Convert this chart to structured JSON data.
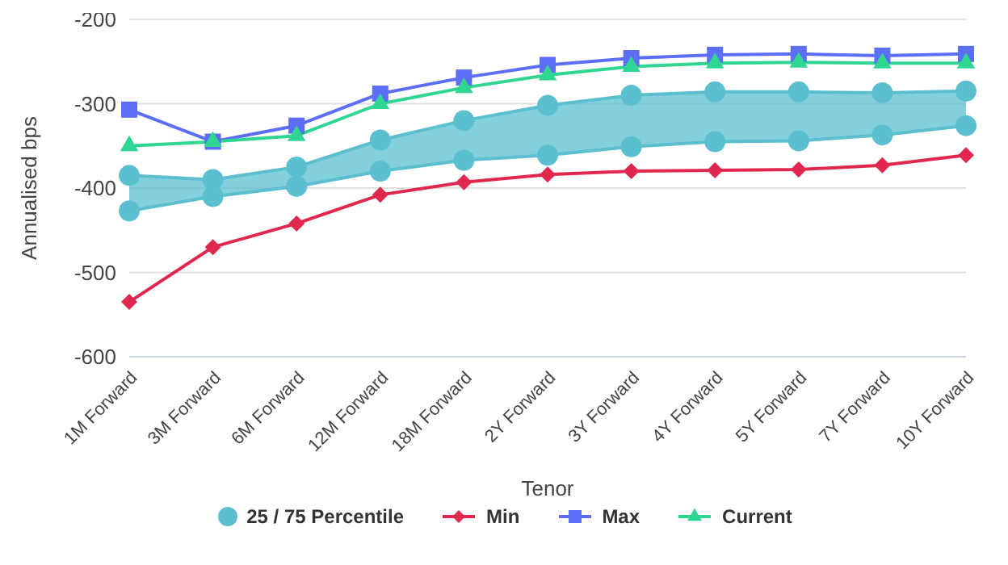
{
  "chart_data": {
    "type": "line",
    "xlabel": "Tenor",
    "ylabel": "Annualised bps",
    "categories": [
      "1M Forward",
      "3M Forward",
      "6M Forward",
      "12M Forward",
      "18M Forward",
      "2Y Forward",
      "3Y Forward",
      "4Y Forward",
      "5Y Forward",
      "7Y Forward",
      "10Y Forward"
    ],
    "ylim": [
      -600,
      -200
    ],
    "yticks": [
      -600,
      -500,
      -400,
      -300,
      -200
    ],
    "grid": "y",
    "legend": "bottom",
    "series": [
      {
        "name": "25 / 75 Percentile",
        "color": "#5bbfd0",
        "marker": "circle",
        "values": [
          -385,
          -390,
          -375,
          -343,
          -320,
          -302,
          -290,
          -286,
          -286,
          -287,
          -285
        ],
        "lower": [
          -427,
          -410,
          -398,
          -380,
          -367,
          -361,
          -351,
          -345,
          -344,
          -337,
          -326
        ],
        "upper": [
          -385,
          -390,
          -375,
          -343,
          -320,
          -302,
          -290,
          -286,
          -286,
          -287,
          -285
        ]
      },
      {
        "color": "#5bbfd0",
        "marker": "circle",
        "values": [
          -427,
          -410,
          -398,
          -380,
          -367,
          -361,
          -351,
          -345,
          -344,
          -337,
          -326
        ]
      },
      {
        "name": "Min",
        "color": "#e0284e",
        "marker": "diamond",
        "values": [
          -535,
          -470,
          -442,
          -408,
          -393,
          -384,
          -380,
          -379,
          -378,
          -373,
          -361
        ]
      },
      {
        "name": "Max",
        "color": "#5b6ef5",
        "marker": "square",
        "values": [
          -307,
          -345,
          -326,
          -288,
          -269,
          -254,
          -246,
          -242,
          -241,
          -243,
          -241
        ]
      },
      {
        "name": "Current",
        "color": "#2fd692",
        "marker": "triangle",
        "values": [
          -350,
          -345,
          -338,
          -300,
          -281,
          -266,
          -256,
          -252,
          -251,
          -252,
          -252
        ]
      }
    ]
  }
}
